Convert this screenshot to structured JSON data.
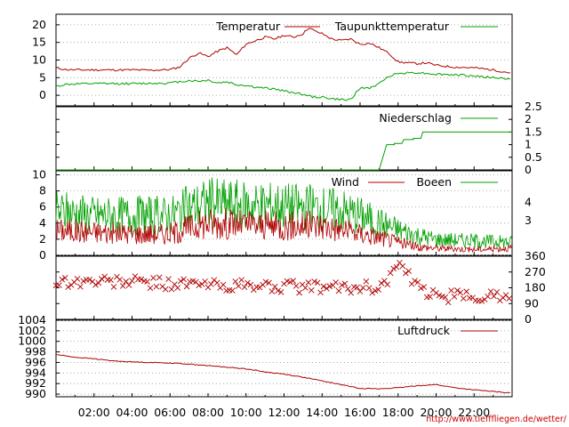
{
  "colors": {
    "red": "#b00000",
    "green": "#00a000",
    "grid": "#999999"
  },
  "credit": "http://www.tiefffliegen.de/wetter/",
  "time_axis": {
    "ticks": [
      "02:00",
      "04:00",
      "06:00",
      "08:00",
      "10:00",
      "12:00",
      "14:00",
      "16:00",
      "18:00",
      "20:00",
      "22:00"
    ],
    "range_hours": [
      0,
      24
    ]
  },
  "chart_data": [
    {
      "type": "line",
      "ylim": [
        -3,
        23
      ],
      "y_ticks": [
        "0",
        "5",
        "10",
        "15",
        "20"
      ],
      "y_tick_values": [
        0,
        5,
        10,
        15,
        20
      ],
      "series": [
        {
          "name": "Temperatur",
          "color": "red",
          "points": [
            [
              0,
              7.8
            ],
            [
              0.5,
              7.3
            ],
            [
              1,
              7.2
            ],
            [
              2,
              7.2
            ],
            [
              3,
              7.2
            ],
            [
              4,
              7.2
            ],
            [
              5,
              7.1
            ],
            [
              6,
              7.3
            ],
            [
              6.5,
              8
            ],
            [
              7,
              10.5
            ],
            [
              7.5,
              12
            ],
            [
              8,
              11
            ],
            [
              8.5,
              12.5
            ],
            [
              9,
              13.5
            ],
            [
              9.5,
              11.5
            ],
            [
              10,
              14.5
            ],
            [
              10.5,
              15.5
            ],
            [
              11,
              16.5
            ],
            [
              11.5,
              16
            ],
            [
              12,
              17
            ],
            [
              12.5,
              16.5
            ],
            [
              13,
              17.5
            ],
            [
              13.3,
              19.2
            ],
            [
              13.7,
              18
            ],
            [
              14,
              17.5
            ],
            [
              14.5,
              16
            ],
            [
              15,
              15.5
            ],
            [
              15.5,
              16
            ],
            [
              16,
              14.5
            ],
            [
              16.5,
              14.8
            ],
            [
              17,
              13.5
            ],
            [
              17.5,
              12
            ],
            [
              18,
              9.5
            ],
            [
              18.5,
              9.2
            ],
            [
              19,
              9
            ],
            [
              19.5,
              9.2
            ],
            [
              20,
              8.5
            ],
            [
              21,
              8
            ],
            [
              22,
              7.8
            ],
            [
              23,
              7.2
            ],
            [
              24,
              6.3
            ]
          ]
        },
        {
          "name": "Taupunkttemperatur",
          "color": "green",
          "points": [
            [
              0,
              2.5
            ],
            [
              0.5,
              3.1
            ],
            [
              1,
              3.2
            ],
            [
              2,
              3.3
            ],
            [
              3,
              3.3
            ],
            [
              4,
              3.3
            ],
            [
              5,
              3.4
            ],
            [
              6,
              3.5
            ],
            [
              7,
              4.2
            ],
            [
              7.5,
              4
            ],
            [
              8,
              4.3
            ],
            [
              8.5,
              3.5
            ],
            [
              9,
              3.8
            ],
            [
              9.5,
              3
            ],
            [
              10,
              2.8
            ],
            [
              10.5,
              2.3
            ],
            [
              11,
              2
            ],
            [
              11.5,
              1.8
            ],
            [
              12,
              1.2
            ],
            [
              12.5,
              0.8
            ],
            [
              13,
              0.3
            ],
            [
              13.5,
              -0.5
            ],
            [
              14,
              -0.5
            ],
            [
              14.5,
              -1
            ],
            [
              15,
              -1.2
            ],
            [
              15.3,
              -1.5
            ],
            [
              15.6,
              -0.5
            ],
            [
              16,
              2
            ],
            [
              16.5,
              2.1
            ],
            [
              17,
              3.2
            ],
            [
              17.5,
              5.5
            ],
            [
              18,
              6.2
            ],
            [
              18.5,
              6.4
            ],
            [
              19,
              6.5
            ],
            [
              19.5,
              6.2
            ],
            [
              20,
              6
            ],
            [
              21,
              5.8
            ],
            [
              22,
              5.5
            ],
            [
              23,
              5
            ],
            [
              24,
              4.6
            ]
          ]
        }
      ]
    },
    {
      "type": "line",
      "ylim": [
        0,
        2.5
      ],
      "y_ticks": [
        "0",
        "0.5",
        "1",
        "1.5",
        "2",
        "2.5"
      ],
      "y_tick_values": [
        0,
        0.5,
        1,
        1.5,
        2,
        2.5
      ],
      "series": [
        {
          "name": "Niederschlag",
          "color": "green",
          "points": [
            [
              0,
              0
            ],
            [
              17,
              0
            ],
            [
              17.4,
              1
            ],
            [
              17.8,
              1
            ],
            [
              17.8,
              1.05
            ],
            [
              18.2,
              1.05
            ],
            [
              18.3,
              1.2
            ],
            [
              18.8,
              1.2
            ],
            [
              18.8,
              1.25
            ],
            [
              19.2,
              1.25
            ],
            [
              19.3,
              1.5
            ],
            [
              24,
              1.5
            ]
          ]
        }
      ]
    },
    {
      "type": "line",
      "ylim": [
        0,
        10.5
      ],
      "y_ticks": [
        "0",
        "2",
        "4",
        "6",
        "8",
        "10"
      ],
      "y_tick_values": [
        0,
        2,
        4,
        6,
        8,
        10
      ],
      "y2_ticks": [
        "3",
        "4"
      ],
      "y2_tick_values": [
        4.3,
        6.6
      ],
      "series": [
        {
          "name": "Wind",
          "color": "red",
          "envelope": [
            [
              0,
              3.5
            ],
            [
              2,
              3.2
            ],
            [
              4,
              3
            ],
            [
              6,
              3
            ],
            [
              7,
              3.8
            ],
            [
              8,
              4.5
            ],
            [
              10,
              4.2
            ],
            [
              12,
              4
            ],
            [
              14,
              4.2
            ],
            [
              15,
              3.5
            ],
            [
              16,
              3
            ],
            [
              17,
              2.5
            ],
            [
              18,
              1.8
            ],
            [
              19,
              1.2
            ],
            [
              20,
              1
            ],
            [
              22,
              0.8
            ],
            [
              24,
              1
            ]
          ]
        },
        {
          "name": "Boeen",
          "color": "green",
          "envelope": [
            [
              0,
              6
            ],
            [
              2,
              5.5
            ],
            [
              4,
              5.5
            ],
            [
              6,
              5.5
            ],
            [
              7,
              6.5
            ],
            [
              8,
              7.2
            ],
            [
              10,
              7
            ],
            [
              12,
              6.8
            ],
            [
              14,
              6.5
            ],
            [
              15,
              6.2
            ],
            [
              16,
              5.5
            ],
            [
              17,
              4.5
            ],
            [
              18,
              3.5
            ],
            [
              19,
              2.8
            ],
            [
              20,
              2.2
            ],
            [
              22,
              2
            ],
            [
              24,
              1.8
            ]
          ]
        }
      ]
    },
    {
      "type": "scatter",
      "ylim": [
        0,
        360
      ],
      "y_ticks": [
        "0",
        "90",
        "180",
        "270",
        "360"
      ],
      "y_tick_values": [
        0,
        90,
        180,
        270,
        360
      ],
      "series": [
        {
          "name": "",
          "color": "red",
          "marker": "x",
          "bands": [
            [
              0,
              215
            ],
            [
              4,
              215
            ],
            [
              7,
              200
            ],
            [
              10,
              190
            ],
            [
              13,
              185
            ],
            [
              15,
              180
            ],
            [
              17,
              185
            ],
            [
              17.5,
              230
            ],
            [
              18,
              320
            ],
            [
              19,
              180
            ],
            [
              20,
              130
            ],
            [
              22,
              130
            ],
            [
              24,
              140
            ]
          ]
        }
      ]
    },
    {
      "type": "line",
      "ylim": [
        989.5,
        1004
      ],
      "y_ticks": [
        "990",
        "992",
        "994",
        "996",
        "998",
        "1000",
        "1002",
        "1004"
      ],
      "y_tick_values": [
        990,
        992,
        994,
        996,
        998,
        1000,
        1002,
        1004
      ],
      "series": [
        {
          "name": "Luftdruck",
          "color": "red",
          "points": [
            [
              0,
              997.5
            ],
            [
              1,
              997
            ],
            [
              2,
              996.7
            ],
            [
              3,
              996.3
            ],
            [
              4,
              996.1
            ],
            [
              5,
              996
            ],
            [
              6,
              995.9
            ],
            [
              7,
              995.7
            ],
            [
              8,
              995.4
            ],
            [
              9,
              995.1
            ],
            [
              10,
              994.8
            ],
            [
              11,
              994.2
            ],
            [
              12,
              993.8
            ],
            [
              13,
              993.2
            ],
            [
              14,
              992.5
            ],
            [
              15,
              991.8
            ],
            [
              16,
              991.1
            ],
            [
              17,
              991
            ],
            [
              18,
              991.2
            ],
            [
              19,
              991.6
            ],
            [
              20,
              991.8
            ],
            [
              21,
              991.2
            ],
            [
              22,
              990.8
            ],
            [
              23,
              990.5
            ],
            [
              24,
              990.2
            ]
          ]
        }
      ]
    }
  ]
}
